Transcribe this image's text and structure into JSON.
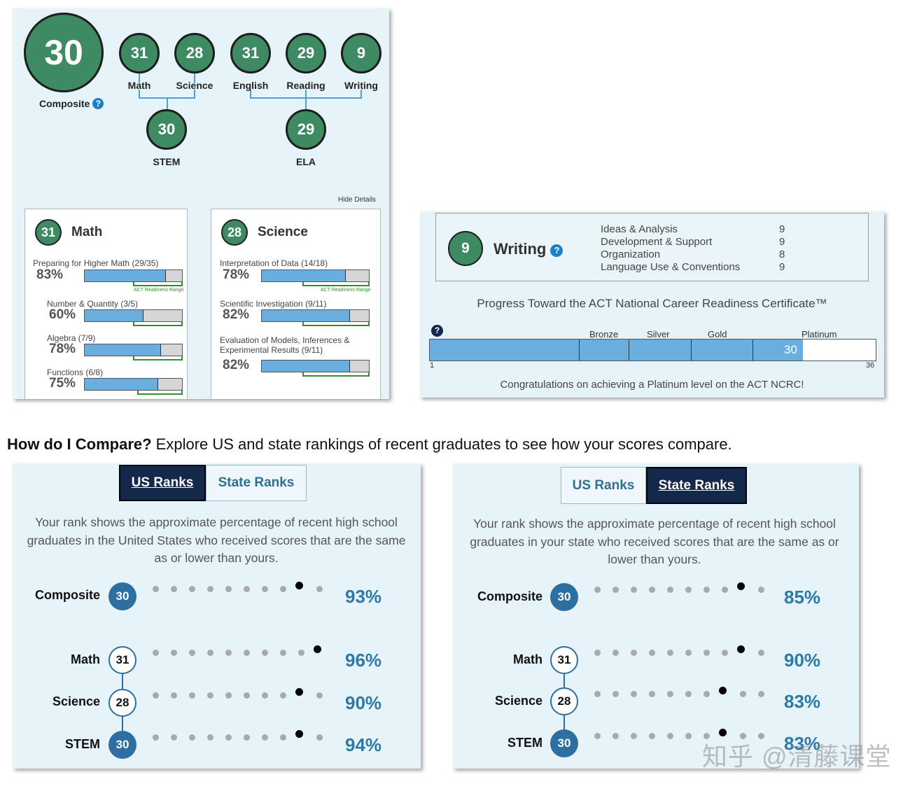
{
  "scores": {
    "composite": {
      "value": "30",
      "label": "Composite",
      "help": "?"
    },
    "subjects": [
      {
        "value": "31",
        "label": "Math"
      },
      {
        "value": "28",
        "label": "Science"
      },
      {
        "value": "31",
        "label": "English"
      },
      {
        "value": "29",
        "label": "Reading"
      },
      {
        "value": "9",
        "label": "Writing"
      }
    ],
    "stem": {
      "value": "30",
      "label": "STEM"
    },
    "ela": {
      "value": "29",
      "label": "ELA"
    },
    "hide_details": "Hide Details"
  },
  "details": {
    "range_label": "ACT Readiness Range",
    "math": {
      "score": "31",
      "title": "Math",
      "items": [
        {
          "name": "Preparing for Higher Math (29/35)",
          "pct": "83%",
          "fraction": 0.83
        },
        {
          "name": "Number & Quantity (3/5)",
          "pct": "60%",
          "fraction": 0.6
        },
        {
          "name": "Algebra (7/9)",
          "pct": "78%",
          "fraction": 0.78
        },
        {
          "name": "Functions (6/8)",
          "pct": "75%",
          "fraction": 0.75
        }
      ]
    },
    "science": {
      "score": "28",
      "title": "Science",
      "items": [
        {
          "name": "Interpretation of Data (14/18)",
          "pct": "78%",
          "fraction": 0.78
        },
        {
          "name": "Scientific Investigation (9/11)",
          "pct": "82%",
          "fraction": 0.82
        },
        {
          "name": "Evaluation of Models, Inferences & Experimental Results (9/11)",
          "name_line1": "Evaluation of Models, Inferences &",
          "name_line2": "Experimental Results (9/11)",
          "pct": "82%",
          "fraction": 0.82
        }
      ]
    }
  },
  "writing": {
    "score": "9",
    "title": "Writing",
    "help": "?",
    "domains": [
      {
        "name": "Ideas & Analysis",
        "value": "9"
      },
      {
        "name": "Development & Support",
        "value": "9"
      },
      {
        "name": "Organization",
        "value": "8"
      },
      {
        "name": "Language Use & Conventions",
        "value": "9"
      }
    ]
  },
  "ncrc": {
    "title": "Progress Toward the ACT National Career Readiness Certificate™",
    "help": "?",
    "levels": [
      "Bronze",
      "Silver",
      "Gold",
      "Platinum"
    ],
    "score": "30",
    "min": "1",
    "max": "36",
    "message": "Congratulations on achieving a Platinum level on the ACT NCRC!"
  },
  "compare": {
    "heading_bold": "How do I Compare?",
    "heading_rest": " Explore US and state rankings of recent graduates to see how your scores compare.",
    "tabs": {
      "us": "US Ranks",
      "state": "State Ranks"
    },
    "us": {
      "description": "Your rank shows the approximate percentage of recent high school graduates in the United States who received scores that are the same as or lower than yours.",
      "rows": [
        {
          "label": "Composite",
          "score": "30",
          "pct": "93%",
          "rank": 0.93
        },
        {
          "label": "Math",
          "score": "31",
          "pct": "96%",
          "rank": 0.96
        },
        {
          "label": "Science",
          "score": "28",
          "pct": "90%",
          "rank": 0.9
        },
        {
          "label": "STEM",
          "score": "30",
          "pct": "94%",
          "rank": 0.94
        }
      ]
    },
    "state": {
      "description": "Your rank shows the approximate percentage of recent high school graduates in your state who received scores that are the same as or lower than yours.",
      "rows": [
        {
          "label": "Composite",
          "score": "30",
          "pct": "85%",
          "rank": 0.85
        },
        {
          "label": "Math",
          "score": "31",
          "pct": "90%",
          "rank": 0.9
        },
        {
          "label": "Science",
          "score": "28",
          "pct": "83%",
          "rank": 0.83
        },
        {
          "label": "STEM",
          "score": "30",
          "pct": "83%",
          "rank": 0.83
        }
      ]
    }
  },
  "watermark": "知乎 @清藤课堂"
}
